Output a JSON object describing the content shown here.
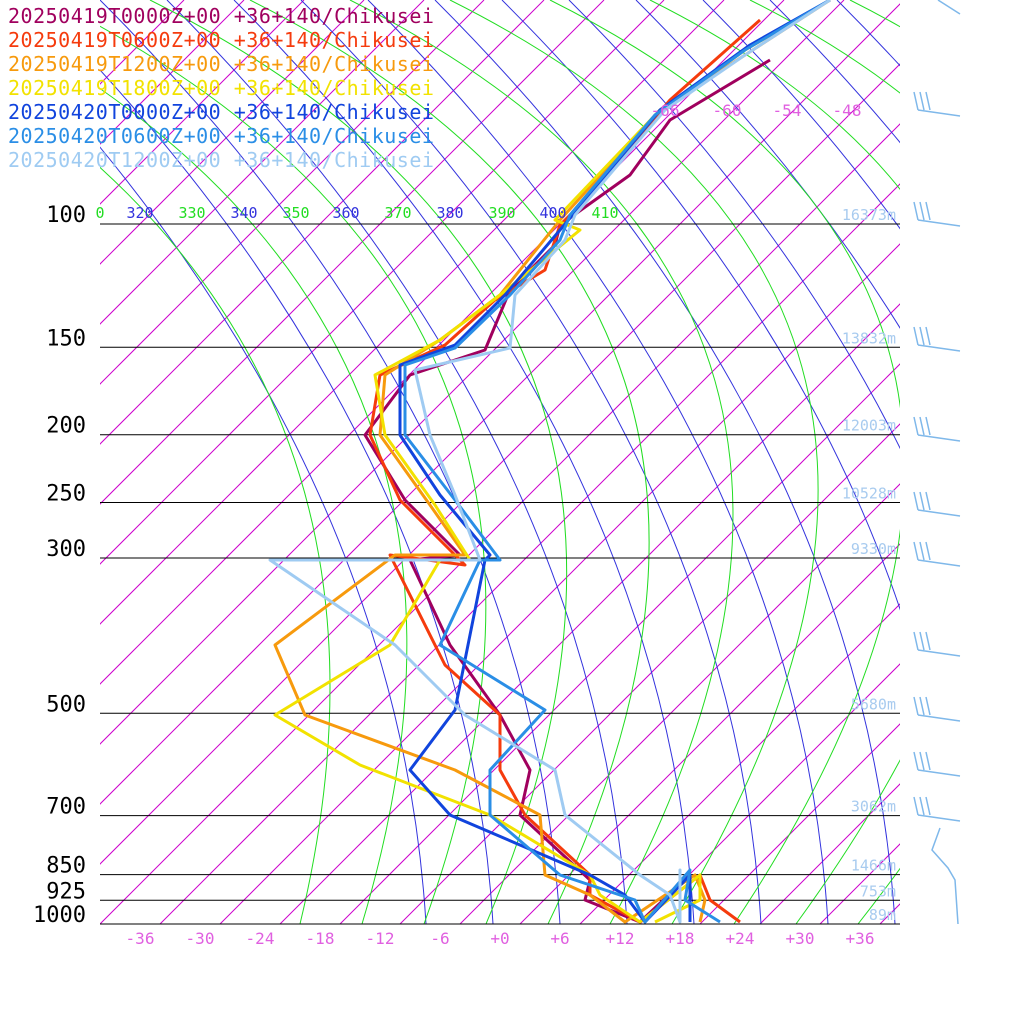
{
  "chart_data": {
    "type": "line",
    "title": "",
    "legend": [
      {
        "label": "20250419T0000Z+00 +36+140/Chikusei",
        "color": "#a0005e"
      },
      {
        "label": "20250419T0600Z+00 +36+140/Chikusei",
        "color": "#f53b0d"
      },
      {
        "label": "20250419T1200Z+00 +36+140/Chikusei",
        "color": "#f79a0d"
      },
      {
        "label": "20250419T1800Z+00 +36+140/Chikusei",
        "color": "#f2e200"
      },
      {
        "label": "20250420T0000Z+00 +36+140/Chikusei",
        "color": "#1144dd"
      },
      {
        "label": "20250420T0600Z+00 +36+140/Chikusei",
        "color": "#2a8ee6"
      },
      {
        "label": "20250420T1200Z+00 +36+140/Chikusei",
        "color": "#9fcbf2"
      }
    ],
    "legend_placement": "top-left",
    "y_axis": {
      "scale": "log",
      "pressure_levels": [
        100,
        150,
        200,
        250,
        300,
        500,
        700,
        850,
        925,
        1000
      ],
      "labels": [
        "100",
        "150",
        "200",
        "250",
        "300",
        "500",
        "700",
        "850",
        "925",
        "1000"
      ],
      "range": [
        1000,
        100
      ]
    },
    "x_axis": {
      "ticks": [
        -36,
        -30,
        -24,
        -18,
        -12,
        -6,
        0,
        6,
        12,
        18,
        24,
        30,
        36
      ],
      "labels": [
        "-36",
        "-30",
        "-24",
        "-18",
        "-12",
        "-6",
        "+0",
        "+6",
        "+12",
        "+18",
        "+24",
        "+30",
        "+36"
      ],
      "range": [
        -40,
        40
      ]
    },
    "height_labels": [
      {
        "p": 100,
        "text": "16373m"
      },
      {
        "p": 150,
        "text": "13832m"
      },
      {
        "p": 200,
        "text": "12003m"
      },
      {
        "p": 250,
        "text": "10528m"
      },
      {
        "p": 300,
        "text": "9330m"
      },
      {
        "p": 500,
        "text": "5680m"
      },
      {
        "p": 700,
        "text": "3062m"
      },
      {
        "p": 850,
        "text": "1466m"
      },
      {
        "p": 925,
        "text": "753m"
      },
      {
        "p": 1000,
        "text": "89m"
      }
    ],
    "theta_labels": [
      "0",
      "320",
      "330",
      "340",
      "350",
      "360",
      "370",
      "380",
      "390",
      "400",
      "410"
    ],
    "isotherm_top_labels": [
      "-66",
      "-60",
      "-54",
      "-48"
    ],
    "colors": {
      "isotherm": "#cc00cc",
      "dry_adiabat": "#3333dd",
      "moist_adiabat": "#22dd22",
      "isobar": "#000000",
      "height_label": "#a8cbef",
      "tick_label": "#e060e0",
      "wind_barb": "#7fb8ea"
    },
    "series": [
      {
        "name": "20250419T0000Z+00 +36+140/Chikusei",
        "points": [
          [
            770,
            60
          ],
          [
            670,
            120
          ],
          [
            630,
            175
          ],
          [
            560,
            225
          ],
          [
            555,
            245
          ],
          [
            510,
            290
          ],
          [
            485,
            350
          ],
          [
            410,
            375
          ],
          [
            365,
            435
          ],
          [
            405,
            500
          ],
          [
            460,
            555
          ],
          [
            410,
            560
          ],
          [
            450,
            645
          ],
          [
            500,
            715
          ],
          [
            530,
            770
          ],
          [
            520,
            815
          ],
          [
            590,
            880
          ],
          [
            585,
            900
          ],
          [
            640,
            922
          ],
          [
            690,
            875
          ],
          [
            690,
            900
          ],
          [
            690,
            922
          ]
        ]
      },
      {
        "name": "20250419T0600Z+00 +36+140/Chikusei",
        "points": [
          [
            760,
            20
          ],
          [
            670,
            100
          ],
          [
            590,
            195
          ],
          [
            560,
            225
          ],
          [
            545,
            270
          ],
          [
            495,
            300
          ],
          [
            445,
            345
          ],
          [
            380,
            375
          ],
          [
            370,
            435
          ],
          [
            400,
            500
          ],
          [
            465,
            565
          ],
          [
            390,
            555
          ],
          [
            445,
            665
          ],
          [
            500,
            715
          ],
          [
            500,
            770
          ],
          [
            525,
            815
          ],
          [
            590,
            875
          ],
          [
            590,
            895
          ],
          [
            640,
            922
          ],
          [
            700,
            875
          ],
          [
            710,
            900
          ],
          [
            740,
            922
          ]
        ]
      },
      {
        "name": "20250419T1200Z+00 +36+140/Chikusei",
        "points": [
          [
            830,
            0
          ],
          [
            745,
            55
          ],
          [
            660,
            110
          ],
          [
            560,
            220
          ],
          [
            500,
            295
          ],
          [
            440,
            340
          ],
          [
            385,
            375
          ],
          [
            380,
            435
          ],
          [
            430,
            505
          ],
          [
            465,
            555
          ],
          [
            395,
            555
          ],
          [
            275,
            645
          ],
          [
            305,
            715
          ],
          [
            455,
            770
          ],
          [
            540,
            815
          ],
          [
            545,
            875
          ],
          [
            590,
            895
          ],
          [
            625,
            922
          ],
          [
            695,
            875
          ],
          [
            705,
            900
          ],
          [
            700,
            922
          ]
        ]
      },
      {
        "name": "20250419T1800Z+00 +36+140/Chikusei",
        "points": [
          [
            830,
            0
          ],
          [
            745,
            50
          ],
          [
            660,
            110
          ],
          [
            555,
            220
          ],
          [
            580,
            230
          ],
          [
            500,
            295
          ],
          [
            440,
            340
          ],
          [
            375,
            375
          ],
          [
            385,
            435
          ],
          [
            435,
            505
          ],
          [
            470,
            560
          ],
          [
            440,
            560
          ],
          [
            390,
            645
          ],
          [
            275,
            715
          ],
          [
            360,
            765
          ],
          [
            490,
            815
          ],
          [
            590,
            875
          ],
          [
            600,
            895
          ],
          [
            640,
            922
          ],
          [
            700,
            875
          ],
          [
            700,
            900
          ],
          [
            655,
            922
          ]
        ]
      },
      {
        "name": "20250420T0000Z+00 +36+140/Chikusei",
        "points": [
          [
            830,
            0
          ],
          [
            750,
            45
          ],
          [
            660,
            110
          ],
          [
            560,
            230
          ],
          [
            505,
            295
          ],
          [
            455,
            345
          ],
          [
            400,
            365
          ],
          [
            400,
            435
          ],
          [
            440,
            495
          ],
          [
            490,
            555
          ],
          [
            485,
            560
          ],
          [
            455,
            710
          ],
          [
            410,
            770
          ],
          [
            450,
            815
          ],
          [
            590,
            875
          ],
          [
            625,
            895
          ],
          [
            645,
            922
          ],
          [
            690,
            875
          ],
          [
            690,
            900
          ],
          [
            690,
            922
          ]
        ]
      },
      {
        "name": "20250420T0600Z+00 +36+140/Chikusei",
        "points": [
          [
            830,
            0
          ],
          [
            745,
            50
          ],
          [
            655,
            115
          ],
          [
            570,
            215
          ],
          [
            560,
            240
          ],
          [
            510,
            295
          ],
          [
            455,
            348
          ],
          [
            405,
            365
          ],
          [
            405,
            435
          ],
          [
            455,
            500
          ],
          [
            500,
            560
          ],
          [
            480,
            560
          ],
          [
            440,
            645
          ],
          [
            545,
            710
          ],
          [
            490,
            770
          ],
          [
            490,
            815
          ],
          [
            560,
            875
          ],
          [
            635,
            900
          ],
          [
            645,
            922
          ],
          [
            690,
            870
          ],
          [
            685,
            900
          ],
          [
            720,
            922
          ]
        ]
      },
      {
        "name": "20250420T1200Z+00 +36+140/Chikusei",
        "points": [
          [
            830,
            0
          ],
          [
            745,
            55
          ],
          [
            665,
            110
          ],
          [
            575,
            215
          ],
          [
            565,
            240
          ],
          [
            515,
            295
          ],
          [
            510,
            348
          ],
          [
            415,
            370
          ],
          [
            430,
            435
          ],
          [
            455,
            495
          ],
          [
            480,
            560
          ],
          [
            270,
            560
          ],
          [
            395,
            645
          ],
          [
            465,
            715
          ],
          [
            555,
            770
          ],
          [
            565,
            815
          ],
          [
            640,
            875
          ],
          [
            670,
            895
          ],
          [
            680,
            922
          ],
          [
            680,
            870
          ],
          [
            680,
            900
          ],
          [
            680,
            922
          ]
        ]
      }
    ]
  }
}
